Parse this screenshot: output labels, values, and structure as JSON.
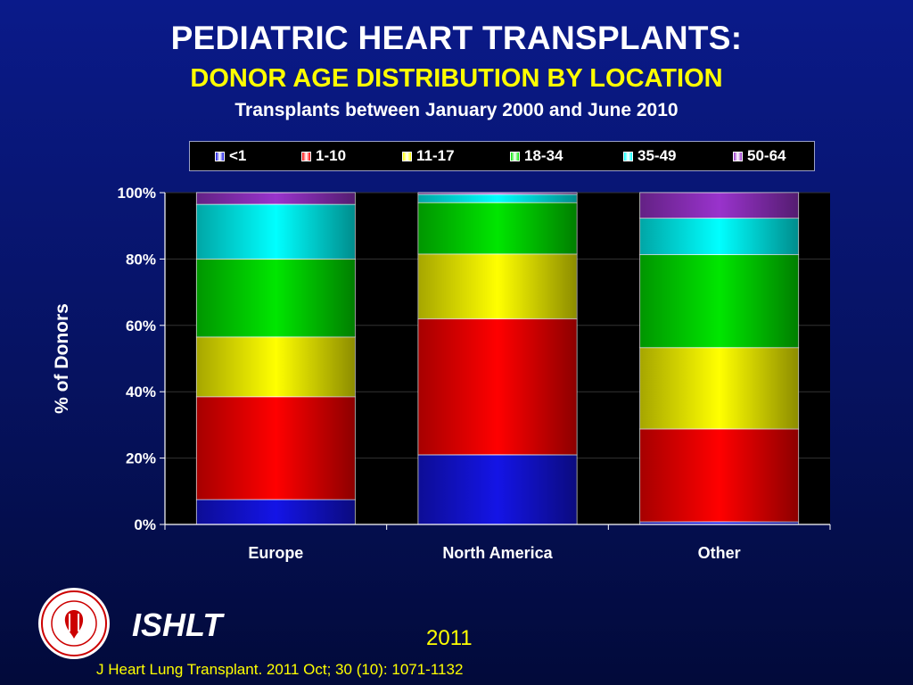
{
  "header": {
    "title": "PEDIATRIC HEART TRANSPLANTS:",
    "subtitle": "DONOR AGE DISTRIBUTION BY LOCATION",
    "caption": "Transplants between January 2000 and June 2010"
  },
  "chart_data": {
    "type": "bar",
    "stacked": true,
    "ylabel": "% of Donors",
    "xlabel": "",
    "ylim": [
      0,
      100
    ],
    "yticks": [
      "0%",
      "20%",
      "40%",
      "60%",
      "80%",
      "100%"
    ],
    "categories": [
      "Europe",
      "North America",
      "Other"
    ],
    "series": [
      {
        "name": "<1",
        "color": "#1414e6",
        "values": [
          7.5,
          21,
          0.8
        ]
      },
      {
        "name": "1-10",
        "color": "#ff0000",
        "values": [
          31,
          41,
          28
        ]
      },
      {
        "name": "11-17",
        "color": "#ffff00",
        "values": [
          18,
          19.5,
          24.5
        ]
      },
      {
        "name": "18-34",
        "color": "#00e600",
        "values": [
          23.5,
          15.5,
          28
        ]
      },
      {
        "name": "35-49",
        "color": "#00ffff",
        "values": [
          16.5,
          2.5,
          11
        ]
      },
      {
        "name": "50-64",
        "color": "#9933cc",
        "values": [
          3.5,
          0.5,
          7.7
        ]
      }
    ],
    "grid": true,
    "legend_position": "top"
  },
  "footer": {
    "logo_text": "INTERNATIONAL SOCIETY FOR HEART & LUNG TRANSPLANTATION",
    "org": "ISHLT",
    "year": "2011",
    "citation": "J Heart Lung Transplant. 2011 Oct; 30 (10): 1071-1132"
  }
}
